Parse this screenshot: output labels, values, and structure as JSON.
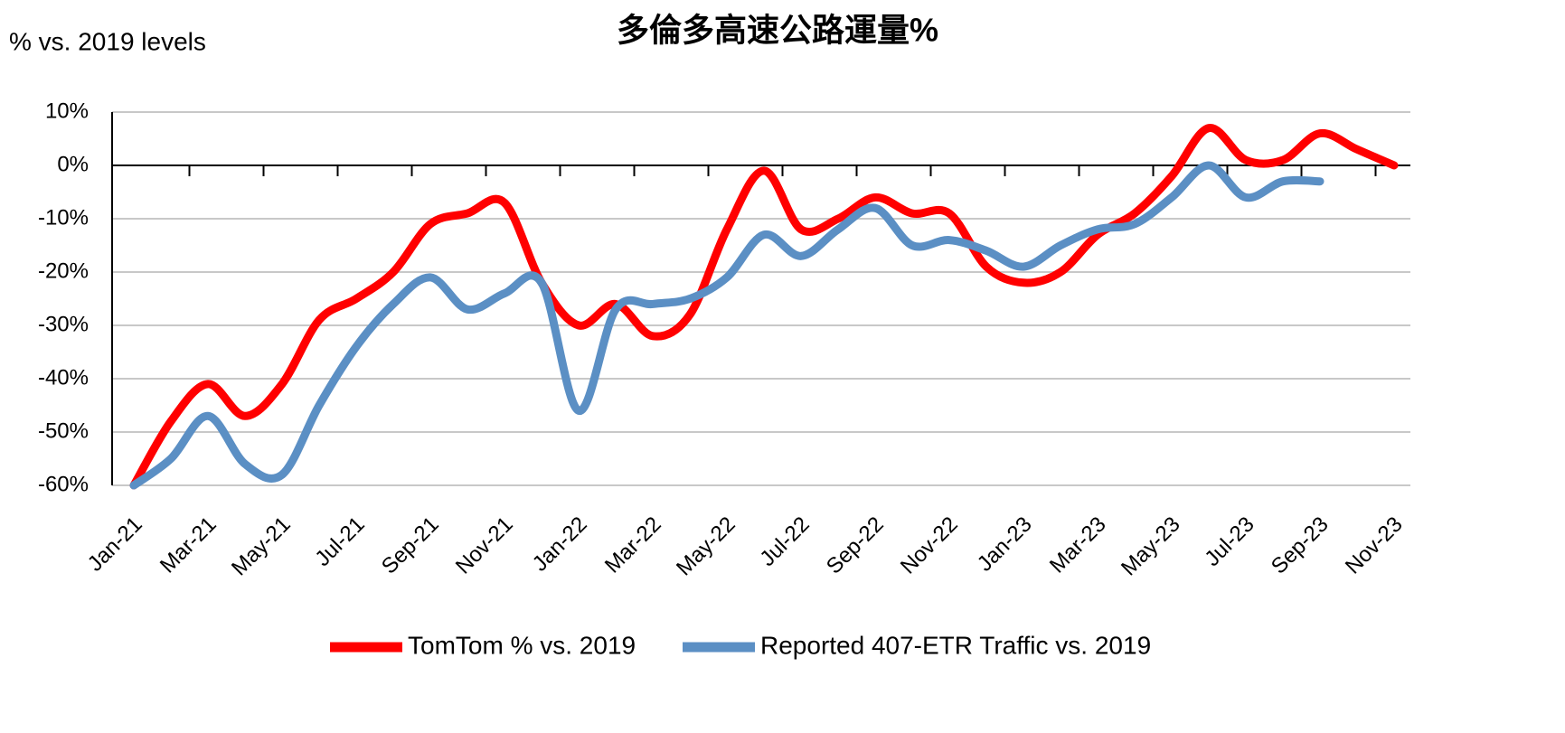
{
  "chart_data": {
    "type": "line",
    "title": "多倫多高速公路運量%",
    "y_label": "% vs. 2019 levels",
    "categories": [
      "Jan-21",
      null,
      "Mar-21",
      null,
      "May-21",
      null,
      "Jul-21",
      null,
      "Sep-21",
      null,
      "Nov-21",
      null,
      "Jan-22",
      null,
      "Mar-22",
      null,
      "May-22",
      null,
      "Jul-22",
      null,
      "Sep-22",
      null,
      "Nov-22",
      null,
      "Jan-23",
      null,
      "Mar-23",
      null,
      "May-23",
      null,
      "Jul-23",
      null,
      "Sep-23",
      null,
      "Nov-23"
    ],
    "series": [
      {
        "name": "TomTom % vs. 2019",
        "color": "#ff0000",
        "values": [
          -60,
          -48,
          -41,
          -47,
          -41,
          -29,
          -25,
          -20,
          -11,
          -9,
          -7,
          -22,
          -30,
          -26,
          -32,
          -28,
          -12,
          -1,
          -12,
          -10,
          -6,
          -9,
          -9,
          -19,
          -22,
          -20,
          -13,
          -9,
          -2,
          7,
          1,
          1,
          6,
          3,
          0
        ]
      },
      {
        "name": "Reported 407-ETR Traffic vs. 2019",
        "color": "#5b8fc4",
        "values": [
          -60,
          -55,
          -47,
          -56,
          -58,
          -45,
          -34,
          -26,
          -21,
          -27,
          -24,
          -22,
          -46,
          -27,
          -26,
          -25,
          -21,
          -13,
          -17,
          -12,
          -8,
          -15,
          -14,
          -16,
          -19,
          -15,
          -12,
          -11,
          -6,
          0,
          -6,
          -3,
          -3,
          null,
          null
        ]
      }
    ],
    "ylim": [
      -60,
      10
    ],
    "yticks": [
      {
        "value": -60,
        "label": "-60%"
      },
      {
        "value": -50,
        "label": "-50%"
      },
      {
        "value": -40,
        "label": "-40%"
      },
      {
        "value": -30,
        "label": "-30%"
      },
      {
        "value": -20,
        "label": "-20%"
      },
      {
        "value": -10,
        "label": "-10%"
      },
      {
        "value": 0,
        "label": "0%"
      },
      {
        "value": 10,
        "label": "10%"
      }
    ],
    "grid": true
  }
}
